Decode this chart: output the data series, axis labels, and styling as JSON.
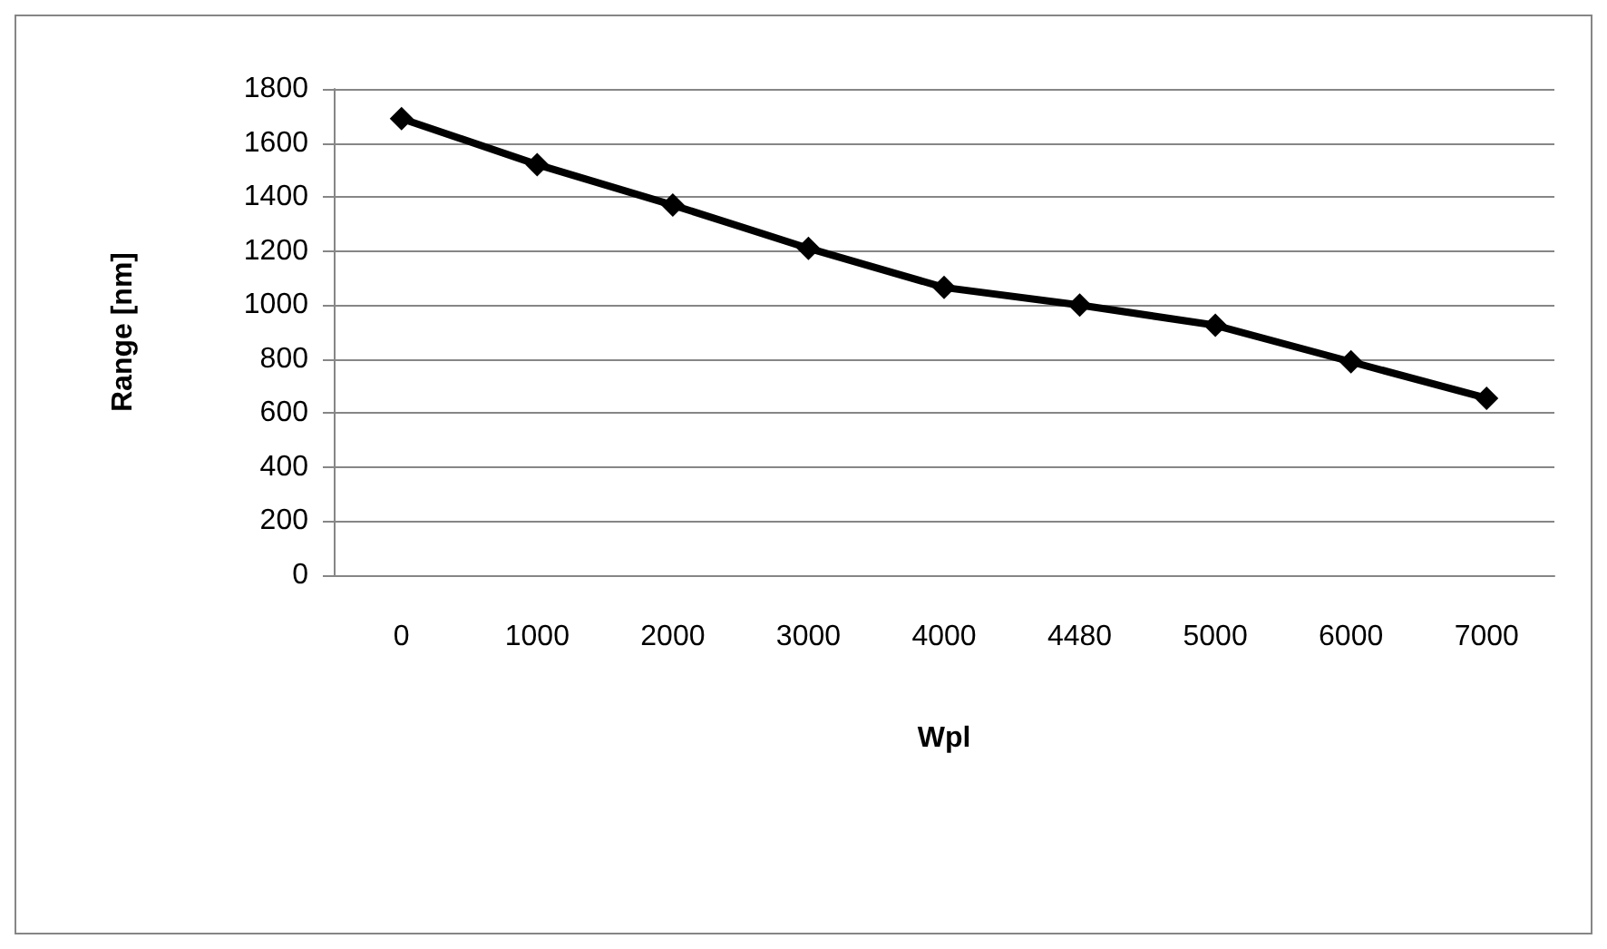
{
  "chart_data": {
    "type": "line",
    "xlabel": "Wpl",
    "ylabel": "Range [nm]",
    "categories": [
      "0",
      "1000",
      "2000",
      "3000",
      "4000",
      "4480",
      "5000",
      "6000",
      "7000"
    ],
    "series": [
      {
        "color": "#000000",
        "values": [
          1690,
          1520,
          1370,
          1210,
          1065,
          1000,
          925,
          790,
          655
        ]
      }
    ],
    "ylim": [
      0,
      1800
    ],
    "yticks": [
      0,
      200,
      400,
      600,
      800,
      1000,
      1200,
      1400,
      1600,
      1800
    ],
    "grid": "y",
    "marker": "diamond",
    "line_style": "solid"
  }
}
